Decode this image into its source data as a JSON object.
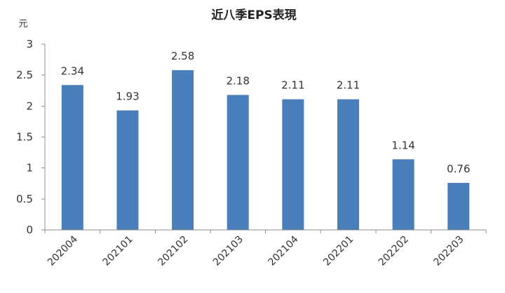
{
  "chart_data": {
    "type": "bar",
    "title": "近八季EPS表現",
    "ylabel": "元",
    "xlabel": "",
    "categories": [
      "202004",
      "202101",
      "202102",
      "202103",
      "202104",
      "202201",
      "202202",
      "202203"
    ],
    "values": [
      2.34,
      1.93,
      2.58,
      2.18,
      2.11,
      2.11,
      1.14,
      0.76
    ],
    "data_labels": [
      "2.34",
      "1.93",
      "2.58",
      "2.18",
      "2.11",
      "2.11",
      "1.14",
      "0.76"
    ],
    "ylim": [
      0,
      3
    ],
    "yticks": [
      0,
      0.5,
      1,
      1.5,
      2,
      2.5,
      3
    ],
    "ytick_labels": [
      "0",
      "0.5",
      "1",
      "1.5",
      "2",
      "2.5",
      "3"
    ],
    "grid": false,
    "legend": "none",
    "colors": {
      "bar": "#4a7ebb"
    }
  }
}
